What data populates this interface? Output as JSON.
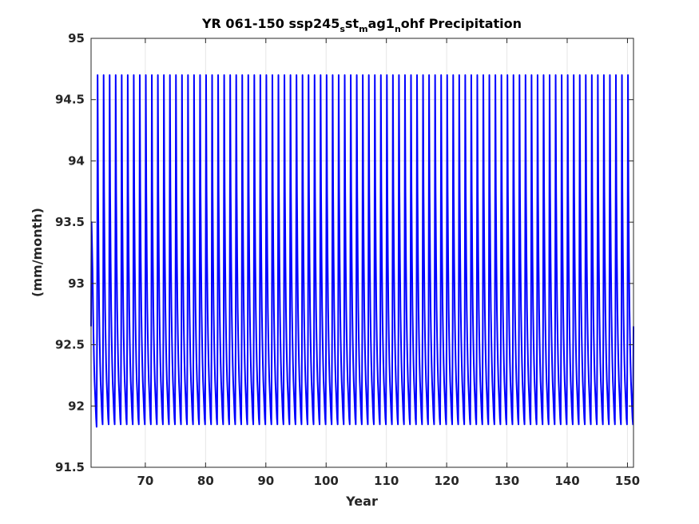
{
  "chart_data": {
    "type": "line",
    "title_parts": [
      {
        "text": "YR 061-150 ssp245",
        "sub": false
      },
      {
        "text": "s",
        "sub": true
      },
      {
        "text": "st",
        "sub": false
      },
      {
        "text": "m",
        "sub": true
      },
      {
        "text": "ag1",
        "sub": false
      },
      {
        "text": "n",
        "sub": true
      },
      {
        "text": "ohf Precipitation",
        "sub": false
      }
    ],
    "xlabel": "Year",
    "ylabel": "(mm/month)",
    "xlim": [
      61,
      151
    ],
    "ylim": [
      91.5,
      95
    ],
    "xticks": [
      70,
      80,
      90,
      100,
      110,
      120,
      130,
      140,
      150
    ],
    "xtick_labels": [
      "70",
      "80",
      "90",
      "100",
      "110",
      "120",
      "130",
      "140",
      "150"
    ],
    "yticks": [
      91.5,
      92,
      92.5,
      93,
      93.5,
      94,
      94.5,
      95
    ],
    "ytick_labels": [
      "91.5",
      "92",
      "92.5",
      "93",
      "93.5",
      "94",
      "94.5",
      "95"
    ],
    "grid": true,
    "series": [
      {
        "color": "#0000ff",
        "x_start": 61,
        "x_end": 151,
        "samples_per_year": 12,
        "seasonal_cycle": [
          92.65,
          94.7,
          93.75,
          93.2,
          92.8,
          92.55,
          92.35,
          92.2,
          92.1,
          92.0,
          91.9,
          91.85
        ],
        "first_year_cycle": [
          92.65,
          93.5,
          93.3,
          93.1,
          92.8,
          92.55,
          92.35,
          92.2,
          92.1,
          92.0,
          91.9,
          91.83
        ],
        "notes_range": [
          91.83,
          94.71
        ]
      }
    ]
  },
  "colors": {
    "series": "#0000ff",
    "axis": "#262626",
    "grid": "#e6e6e6"
  }
}
